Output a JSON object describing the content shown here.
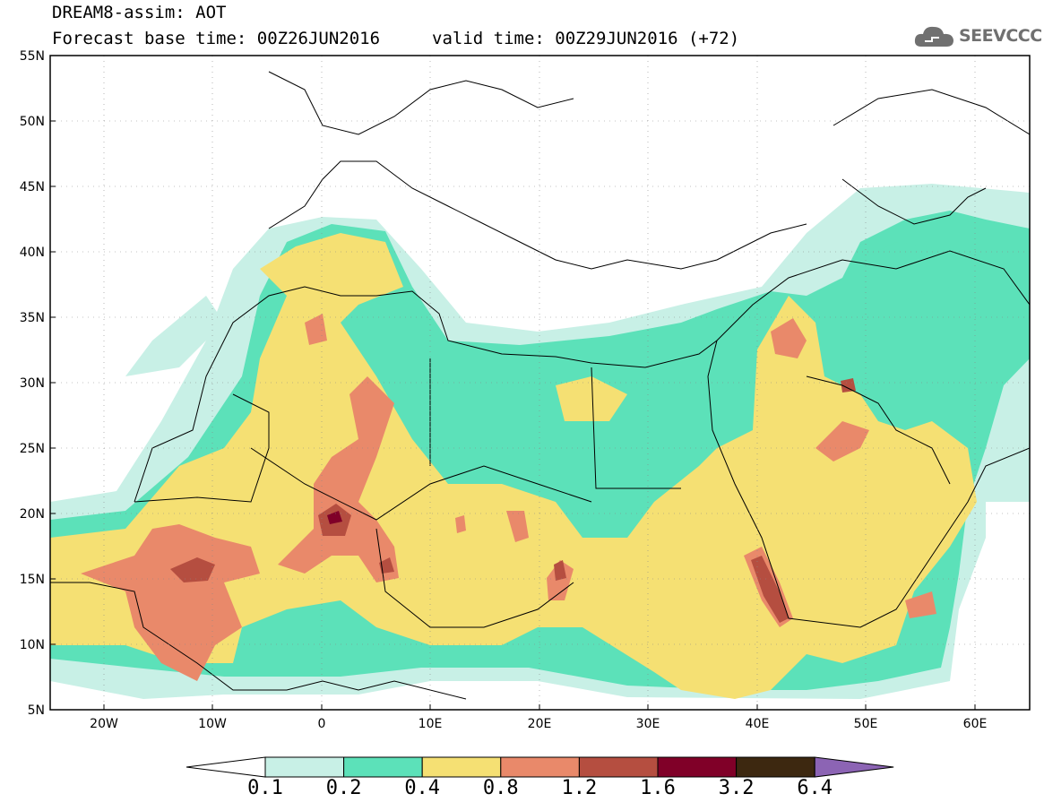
{
  "header": {
    "title": "DREAM8-assim: AOT",
    "base_time": "Forecast base time: 00Z26JUN2016",
    "valid_time": "valid time: 00Z29JUN2016 (+72)"
  },
  "logo": {
    "text": "SEEVCCC",
    "icon": "cloud-icon"
  },
  "map": {
    "lon_range": [
      -25,
      65
    ],
    "lat_range": [
      5,
      55
    ],
    "lat_ticks": [
      "55N",
      "50N",
      "45N",
      "40N",
      "35N",
      "30N",
      "25N",
      "20N",
      "15N",
      "10N",
      "5N"
    ],
    "lon_ticks": [
      "20W",
      "10W",
      "0",
      "10E",
      "20E",
      "30E",
      "40E",
      "50E",
      "60E"
    ]
  },
  "colorbar": {
    "boundaries": [
      "0.1",
      "0.2",
      "0.4",
      "0.8",
      "1.2",
      "1.6",
      "3.2",
      "6.4"
    ],
    "colors": [
      "#ffffff",
      "#c8f0e6",
      "#5ce1b9",
      "#f5e073",
      "#e9896a",
      "#b54e40",
      "#800028",
      "#3d2810",
      "#8c64b4"
    ]
  }
}
